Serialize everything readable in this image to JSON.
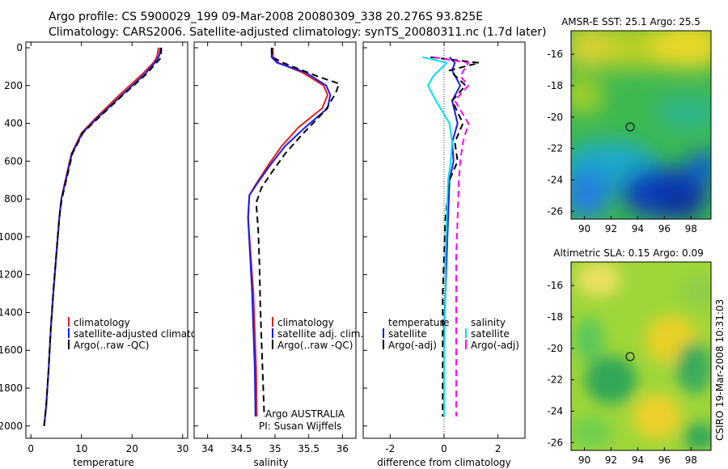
{
  "header": {
    "line1": "Argo profile: CS 5900029_199 09-Mar-2008 20080309_338 20.276S 93.825E",
    "line2": "Climatology: CARS2006. Satellite-adjusted climatology: synTS_20080311.nc (1.7d later)"
  },
  "side_credit": "CSIRO 19-Mar-2008 10:31:03",
  "colors": {
    "climatology": "#e02020",
    "satellite": "#1a1aee",
    "argo": "#000000",
    "sal_satellite": "#00e0f0",
    "sal_argo": "#ff00ff"
  },
  "chart_data": [
    {
      "type": "line",
      "xlabel": "temperature",
      "xlim": [
        -1,
        31
      ],
      "ylim": [
        2000,
        0
      ],
      "xticks": [
        0,
        10,
        20,
        30
      ],
      "yticks": [
        0,
        200,
        400,
        600,
        800,
        1000,
        1200,
        1400,
        1600,
        1800,
        2000
      ],
      "legend": [
        "climatology",
        "satellite-adjusted climatology",
        "Argo(..raw -QC)"
      ],
      "series": [
        {
          "name": "climatology",
          "color": "#e02020",
          "dash": "solid",
          "x": [
            25.2,
            25.0,
            24.7,
            24.2,
            22.0,
            17.5,
            12.5,
            10.0,
            8.0,
            6.8,
            6.0,
            5.6,
            5.0,
            4.4,
            3.9,
            3.5,
            3.0,
            2.6
          ],
          "y": [
            0,
            40,
            60,
            80,
            140,
            250,
            380,
            450,
            560,
            700,
            800,
            900,
            1100,
            1300,
            1500,
            1700,
            1900,
            2000
          ]
        },
        {
          "name": "satellite-adjusted climatology",
          "color": "#1a1aee",
          "dash": "solid",
          "x": [
            25.6,
            25.4,
            25.0,
            24.5,
            22.5,
            18.0,
            12.8,
            10.2,
            8.1,
            6.9,
            6.0,
            5.6,
            5.0,
            4.4,
            3.9,
            3.5,
            3.0,
            2.6
          ],
          "y": [
            0,
            40,
            60,
            80,
            140,
            250,
            380,
            450,
            560,
            700,
            800,
            900,
            1100,
            1300,
            1500,
            1700,
            1900,
            2000
          ]
        },
        {
          "name": "Argo(..raw -QC)",
          "color": "#000000",
          "dash": "dash",
          "x": [
            25.8,
            25.7,
            25.5,
            24.8,
            22.8,
            18.2,
            13.0,
            10.3,
            8.2,
            7.0,
            6.1,
            5.6,
            5.0,
            4.4,
            3.9,
            3.5,
            3.0,
            2.6
          ],
          "y": [
            0,
            40,
            60,
            80,
            140,
            250,
            380,
            450,
            560,
            700,
            800,
            900,
            1100,
            1300,
            1500,
            1700,
            1900,
            2000
          ]
        }
      ]
    },
    {
      "type": "line",
      "xlabel": "salinity",
      "xlim": [
        33.8,
        36.2
      ],
      "ylim": [
        2000,
        0
      ],
      "xticks": [
        34,
        34.5,
        35,
        35.5,
        36
      ],
      "legend": [
        "climatology",
        "satellite adj. clim.",
        "Argo(..raw -QC)"
      ],
      "annotation": [
        "Argo AUSTRALIA",
        "PI: Susan Wijffels"
      ],
      "series": [
        {
          "name": "climatology",
          "color": "#e02020",
          "dash": "solid",
          "x": [
            34.97,
            34.97,
            35.05,
            35.4,
            35.72,
            35.78,
            35.7,
            35.35,
            35.1,
            34.9,
            34.72,
            34.62,
            34.6,
            34.64,
            34.68,
            34.7,
            34.72,
            34.73
          ],
          "y": [
            0,
            50,
            80,
            130,
            200,
            250,
            320,
            420,
            520,
            620,
            720,
            780,
            900,
            1100,
            1300,
            1500,
            1700,
            1950
          ]
        },
        {
          "name": "satellite adj. clim.",
          "color": "#1a1aee",
          "dash": "solid",
          "x": [
            34.95,
            34.95,
            35.03,
            35.45,
            35.76,
            35.82,
            35.78,
            35.45,
            35.15,
            34.93,
            34.73,
            34.62,
            34.6,
            34.63,
            34.66,
            34.68,
            34.7,
            34.71
          ],
          "y": [
            0,
            50,
            80,
            130,
            200,
            250,
            320,
            420,
            520,
            620,
            720,
            780,
            900,
            1100,
            1300,
            1500,
            1700,
            1950
          ]
        },
        {
          "name": "Argo(..raw -QC)",
          "color": "#000000",
          "dash": "dash",
          "x": [
            34.95,
            34.96,
            35.12,
            35.62,
            35.95,
            35.9,
            35.75,
            35.4,
            35.15,
            34.95,
            34.8,
            34.72,
            34.75,
            34.77,
            34.78,
            34.8,
            34.82,
            34.84
          ],
          "y": [
            0,
            50,
            80,
            150,
            190,
            240,
            330,
            460,
            560,
            660,
            740,
            820,
            960,
            1150,
            1350,
            1550,
            1750,
            1950
          ]
        }
      ]
    },
    {
      "type": "line",
      "xlabel": "difference from climatology",
      "xlim": [
        -3,
        3
      ],
      "ylim": [
        2000,
        0
      ],
      "xticks": [
        -2,
        0,
        2
      ],
      "legend_left_title": "temperature",
      "legend_right_title": "salinity",
      "legend_left": [
        "satellite",
        "Argo(-adj)"
      ],
      "legend_right": [
        "satellite",
        "Argo(-adj)"
      ],
      "series": [
        {
          "name": "satellite",
          "color": "#1a1aee",
          "dash": "solid",
          "x": [
            0.2,
            0.4,
            0.3,
            0.6,
            0.3,
            0.5,
            0.3,
            0.35,
            0.2,
            0.15,
            0.1,
            0.05,
            0.0,
            0.0,
            0.0
          ],
          "y": [
            50,
            80,
            120,
            200,
            280,
            400,
            500,
            600,
            700,
            900,
            1100,
            1300,
            1500,
            1700,
            1950
          ]
        },
        {
          "name": "Argo(-adj)",
          "color": "#000000",
          "dash": "dash",
          "x": [
            -0.5,
            1.3,
            0.2,
            0.8,
            0.3,
            0.7,
            0.4,
            0.5,
            0.2,
            0.05,
            0.0,
            -0.05,
            -0.05,
            -0.05,
            -0.05
          ],
          "y": [
            50,
            80,
            120,
            200,
            280,
            400,
            500,
            600,
            700,
            900,
            1100,
            1300,
            1500,
            1700,
            1950
          ]
        },
        {
          "name": "satellite",
          "color": "#00e0f0",
          "dash": "solid",
          "x": [
            -0.8,
            0.1,
            -0.4,
            -0.6,
            -0.3,
            0.2,
            0.3,
            0.25,
            0.15,
            0.1,
            0.05,
            0.05,
            0.0,
            0.0
          ],
          "y": [
            50,
            80,
            150,
            200,
            280,
            400,
            500,
            600,
            700,
            900,
            1100,
            1300,
            1600,
            1950
          ]
        },
        {
          "name": "Argo(-adj)",
          "color": "#ff00ff",
          "dash": "dash",
          "x": [
            -0.4,
            0.9,
            0.6,
            0.9,
            0.4,
            0.9,
            0.7,
            0.6,
            0.55,
            0.5,
            0.45,
            0.45,
            0.45,
            0.45
          ],
          "y": [
            50,
            80,
            150,
            200,
            280,
            400,
            500,
            600,
            700,
            900,
            1100,
            1300,
            1600,
            1950
          ]
        }
      ]
    },
    {
      "type": "heatmap",
      "title": "AMSR-E SST: 25.1 Argo: 25.5",
      "xlim": [
        89,
        99.5
      ],
      "ylim": [
        -26.5,
        -14.5
      ],
      "xticks": [
        90,
        92,
        94,
        96,
        98
      ],
      "yticks": [
        -16,
        -18,
        -20,
        -22,
        -24,
        -26
      ],
      "marker": [
        93.825,
        -20.276
      ]
    },
    {
      "type": "heatmap",
      "title": "Altimetric SLA: 0.15 Argo: 0.09",
      "xlim": [
        89,
        99.5
      ],
      "ylim": [
        -26.5,
        -14.5
      ],
      "xticks": [
        90,
        92,
        94,
        96,
        98
      ],
      "yticks": [
        -16,
        -18,
        -20,
        -22,
        -24,
        -26
      ],
      "marker": [
        93.825,
        -20.276
      ]
    }
  ]
}
